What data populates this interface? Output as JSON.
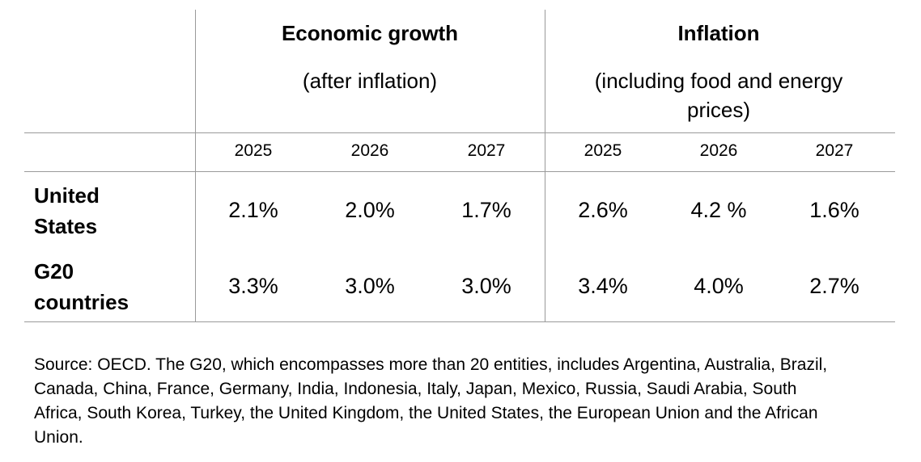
{
  "table": {
    "groups": [
      {
        "title": "Economic growth",
        "subtitle": "(after inflation)"
      },
      {
        "title": "Inflation",
        "subtitle": "(including food and energy prices)"
      }
    ],
    "years": [
      "2025",
      "2026",
      "2027",
      "2025",
      "2026",
      "2027"
    ],
    "rows": [
      {
        "label": "United States",
        "cells": [
          "2.1%",
          "2.0%",
          "1.7%",
          "2.6%",
          "4.2 %",
          "1.6%"
        ]
      },
      {
        "label": "G20 countries",
        "cells": [
          "3.3%",
          "3.0%",
          "3.0%",
          "3.4%",
          "4.0%",
          "2.7%"
        ]
      }
    ]
  },
  "source": "Source: OECD. The G20, which encompasses more than 20 entities, includes Argentina, Australia, Brazil, Canada, China, France, Germany, India, Indonesia, Italy, Japan, Mexico, Russia, Saudi Arabia, South Africa, South Korea, Turkey, the United Kingdom, the United States, the European Union and the African Union."
}
